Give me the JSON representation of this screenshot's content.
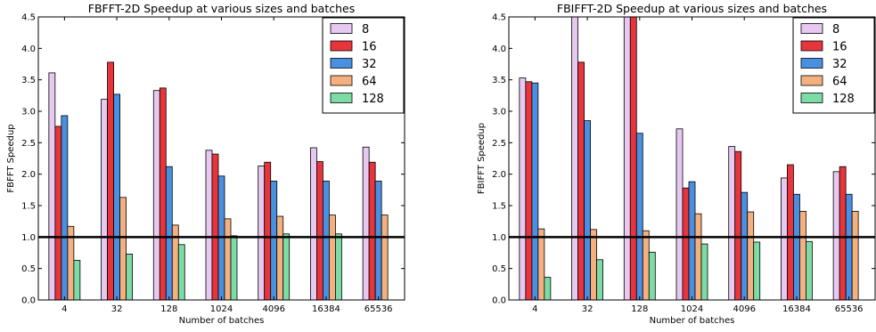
{
  "chart_data": [
    {
      "type": "bar",
      "title": "FBFFT-2D Speedup at various sizes and batches",
      "xlabel": "Number of batches",
      "ylabel": "FBFFT Speedup",
      "ylim": [
        0.0,
        4.5
      ],
      "yticks": [
        "0.0",
        "0.5",
        "1.0",
        "1.5",
        "2.0",
        "2.5",
        "3.0",
        "3.5",
        "4.0",
        "4.5"
      ],
      "categories": [
        "4",
        "32",
        "128",
        "1024",
        "4096",
        "16384",
        "65536"
      ],
      "reference_line": 1.0,
      "legend_position": "top-right",
      "series": [
        {
          "name": "8",
          "color": "#e6c8f0",
          "values": [
            3.61,
            3.19,
            3.33,
            2.38,
            2.13,
            2.42,
            2.43
          ]
        },
        {
          "name": "16",
          "color": "#e8343b",
          "values": [
            2.76,
            3.78,
            3.37,
            2.32,
            2.19,
            2.2,
            2.19
          ]
        },
        {
          "name": "32",
          "color": "#4a90e2",
          "values": [
            2.93,
            3.27,
            2.12,
            1.97,
            1.89,
            1.89,
            1.89
          ]
        },
        {
          "name": "64",
          "color": "#f5b07f",
          "values": [
            1.17,
            1.63,
            1.19,
            1.29,
            1.33,
            1.35,
            1.35
          ]
        },
        {
          "name": "128",
          "color": "#7ddca6",
          "values": [
            0.63,
            0.73,
            0.88,
            1.02,
            1.05,
            1.05,
            null
          ]
        }
      ]
    },
    {
      "type": "bar",
      "title": "FBIFFT-2D Speedup at various sizes and batches",
      "xlabel": "Number of batches",
      "ylabel": "FBIFFT Speedup",
      "ylim": [
        0.0,
        4.5
      ],
      "yticks": [
        "0.0",
        "0.5",
        "1.0",
        "1.5",
        "2.0",
        "2.5",
        "3.0",
        "3.5",
        "4.0",
        "4.5"
      ],
      "categories": [
        "4",
        "32",
        "128",
        "1024",
        "4096",
        "16384",
        "65536"
      ],
      "reference_line": 1.0,
      "legend_position": "top-right",
      "series": [
        {
          "name": "8",
          "color": "#e6c8f0",
          "values": [
            3.53,
            4.5,
            4.5,
            2.72,
            2.44,
            1.94,
            2.04
          ]
        },
        {
          "name": "16",
          "color": "#e8343b",
          "values": [
            3.47,
            3.78,
            4.5,
            1.78,
            2.36,
            2.15,
            2.12
          ]
        },
        {
          "name": "32",
          "color": "#4a90e2",
          "values": [
            3.45,
            2.85,
            2.65,
            1.88,
            1.71,
            1.68,
            1.68
          ]
        },
        {
          "name": "64",
          "color": "#f5b07f",
          "values": [
            1.13,
            1.12,
            1.1,
            1.37,
            1.4,
            1.41,
            1.41
          ]
        },
        {
          "name": "128",
          "color": "#7ddca6",
          "values": [
            0.36,
            0.64,
            0.76,
            0.89,
            0.92,
            0.93,
            null
          ]
        }
      ]
    }
  ]
}
